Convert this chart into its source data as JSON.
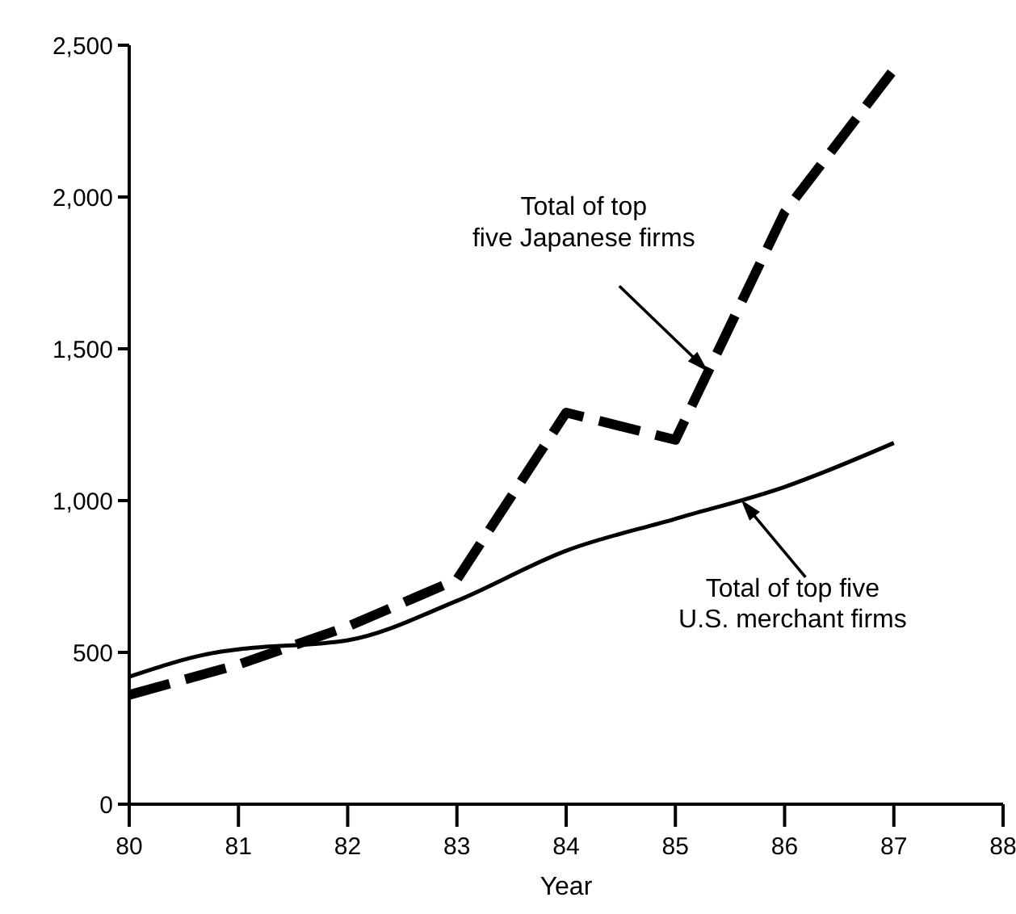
{
  "chart_data": {
    "type": "line",
    "xlabel": "Year",
    "x": [
      80,
      81,
      82,
      83,
      84,
      85,
      86,
      87
    ],
    "xlim": [
      80,
      88
    ],
    "xticks": [
      80,
      81,
      82,
      83,
      84,
      85,
      86,
      87,
      88
    ],
    "ylim": [
      0,
      2500
    ],
    "yticks": [
      0,
      500,
      {
        "value": 1000,
        "label": "1,000"
      },
      {
        "value": 1500,
        "label": "1,500"
      },
      {
        "value": 2000,
        "label": "2,000"
      },
      {
        "value": 2500,
        "label": "2,500"
      }
    ],
    "grid": false,
    "series": [
      {
        "name": "Total of top\nfive Japanese firms",
        "color": "#000000",
        "line_style": "dashed",
        "values": [
          360,
          460,
          585,
          740,
          1290,
          1200,
          1950,
          2420
        ]
      },
      {
        "name": "Total of top five\nU.S. merchant firms",
        "color": "#000000",
        "line_style": "solid",
        "x": [
          80,
          80.8,
          81,
          82,
          83,
          84,
          85,
          86,
          87
        ],
        "values": [
          420,
          500,
          510,
          540,
          670,
          835,
          940,
          1045,
          1190
        ]
      }
    ]
  }
}
